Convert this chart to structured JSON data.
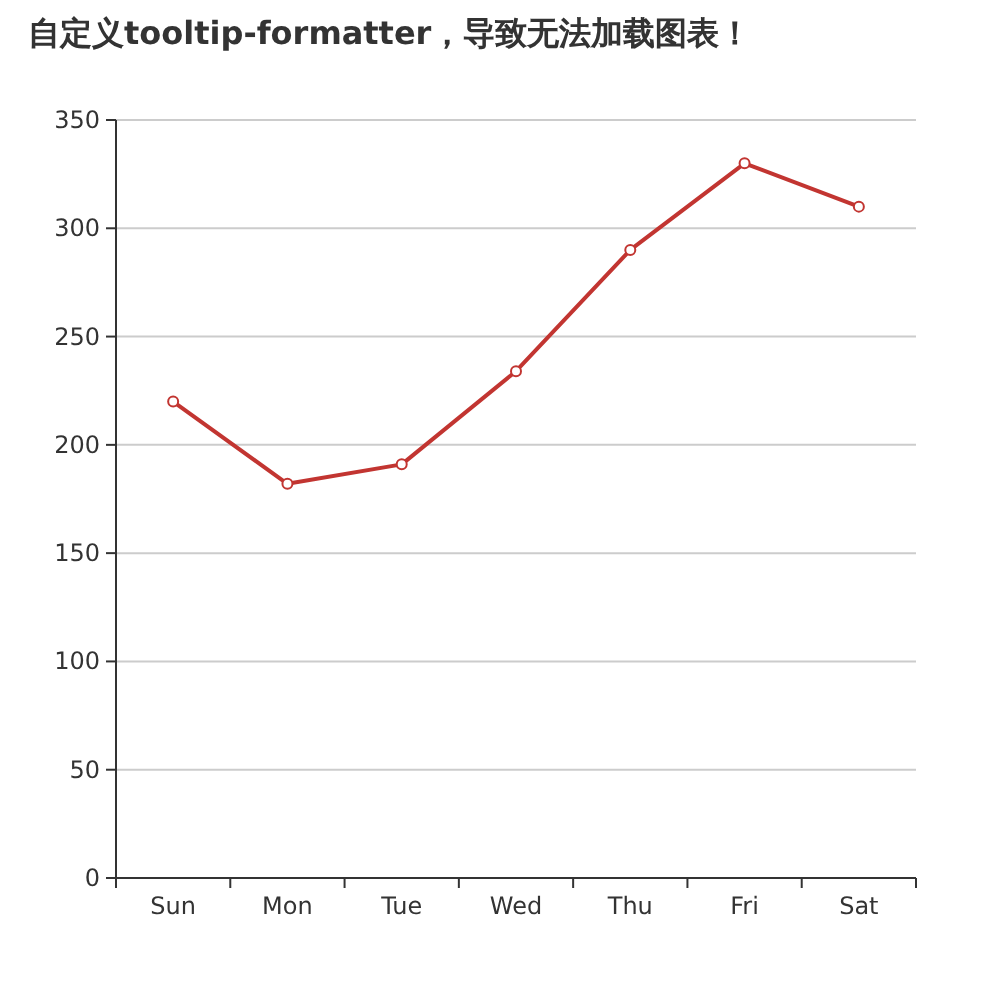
{
  "chart_data": {
    "type": "line",
    "title": "自定义tooltip-formatter，导致无法加载图表！",
    "categories": [
      "Sun",
      "Mon",
      "Tue",
      "Wed",
      "Thu",
      "Fri",
      "Sat"
    ],
    "series": [
      {
        "color": "#c23531",
        "values": [
          220,
          182,
          191,
          234,
          290,
          330,
          310
        ]
      }
    ],
    "ylim": [
      0,
      350
    ],
    "yticks": [
      0,
      50,
      100,
      150,
      200,
      250,
      300,
      350
    ],
    "grid": "y",
    "marker": "circle",
    "line_style": "solid"
  }
}
